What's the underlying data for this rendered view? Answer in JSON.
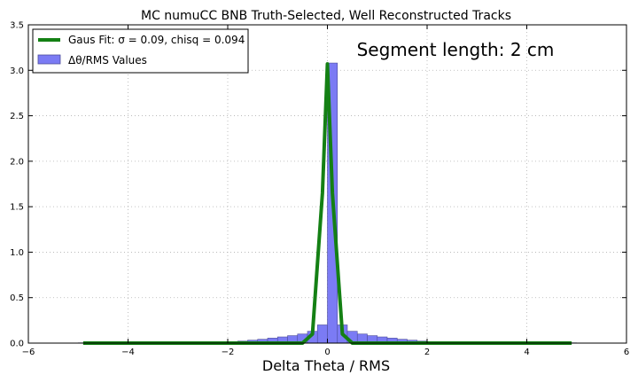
{
  "chart_data": {
    "type": "bar",
    "title": "MC numuCC BNB Truth-Selected, Well Reconstructed Tracks",
    "xlabel": "Delta Theta / RMS",
    "ylabel": "",
    "xlim": [
      -6,
      6
    ],
    "ylim": [
      0,
      3.5
    ],
    "grid": true,
    "xticks": [
      "−6",
      "−4",
      "−2",
      "0",
      "2",
      "4",
      "6"
    ],
    "yticks": [
      "0.0",
      "0.5",
      "1.0",
      "1.5",
      "2.0",
      "2.5",
      "3.0",
      "3.5"
    ],
    "annotation": "Segment length: 2 cm",
    "legend": {
      "position": "top-left",
      "entries": [
        {
          "label": "Gaus Fit: σ = 0.09, chisq = 0.094",
          "style": "line",
          "color": "#148014"
        },
        {
          "label": "Δθ/RMS Values",
          "style": "patch",
          "color": "#7b7bf4"
        }
      ]
    },
    "histogram": {
      "name": "Δθ/RMS Values",
      "color": "#7b7bf4",
      "edge_color": "#4d4d9c",
      "bin_width": 0.2,
      "bin_left_edges": [
        -5.0,
        -4.8,
        -4.6,
        -4.4,
        -4.2,
        -4.0,
        -3.8,
        -3.6,
        -3.4,
        -3.2,
        -3.0,
        -2.8,
        -2.6,
        -2.4,
        -2.2,
        -2.0,
        -1.8,
        -1.6,
        -1.4,
        -1.2,
        -1.0,
        -0.8,
        -0.6,
        -0.4,
        -0.2,
        0.0,
        0.2,
        0.4,
        0.6,
        0.8,
        1.0,
        1.2,
        1.4,
        1.6,
        1.8,
        2.0,
        2.2,
        2.4,
        2.6,
        2.8,
        3.0,
        3.2,
        3.4,
        3.6,
        3.8,
        4.0,
        4.2,
        4.4,
        4.6,
        4.8
      ],
      "values": [
        0.003,
        0.003,
        0.003,
        0.003,
        0.004,
        0.004,
        0.004,
        0.005,
        0.005,
        0.006,
        0.006,
        0.007,
        0.008,
        0.009,
        0.011,
        0.014,
        0.022,
        0.032,
        0.042,
        0.055,
        0.068,
        0.082,
        0.1,
        0.13,
        0.2,
        3.08,
        0.2,
        0.13,
        0.1,
        0.082,
        0.068,
        0.055,
        0.042,
        0.032,
        0.022,
        0.014,
        0.011,
        0.009,
        0.008,
        0.007,
        0.006,
        0.006,
        0.005,
        0.005,
        0.004,
        0.004,
        0.003,
        0.003,
        0.003,
        0.003
      ]
    },
    "fit_line": {
      "name": "Gaus Fit",
      "color": "#148014",
      "x": [
        -4.9,
        -0.5,
        -0.3,
        -0.1,
        0.0,
        0.1,
        0.3,
        0.5,
        4.9
      ],
      "y": [
        0.0,
        0.0,
        0.1,
        1.65,
        3.07,
        1.65,
        0.1,
        0.0,
        0.0
      ]
    }
  }
}
